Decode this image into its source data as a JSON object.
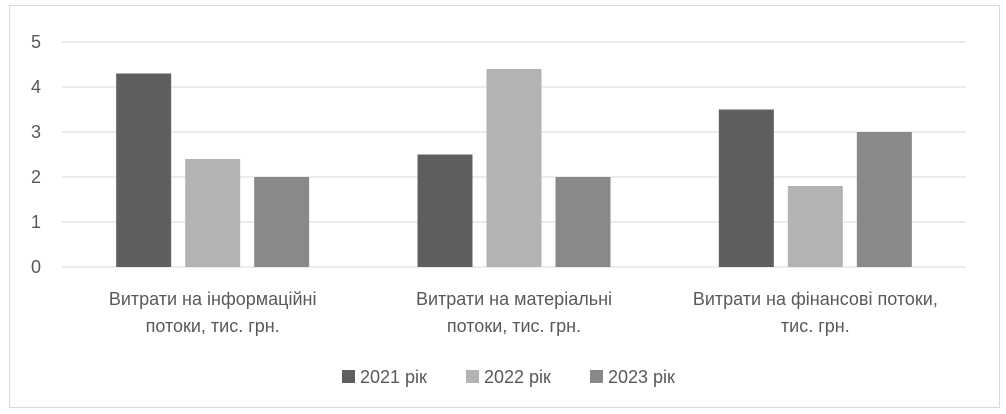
{
  "chart_data": {
    "type": "bar",
    "title": "",
    "xlabel": "",
    "ylabel": "",
    "categories": [
      [
        "Витрати на інформаційні",
        "потоки, тис. грн."
      ],
      [
        "Витрати на матеріальні",
        "потоки, тис. грн."
      ],
      [
        "Витрати на фінансові потоки,",
        "тис. грн."
      ]
    ],
    "series": [
      {
        "name": "2021 рік",
        "values": [
          4.3,
          2.5,
          3.5
        ],
        "color": "#5f5f5f"
      },
      {
        "name": "2022 рік",
        "values": [
          2.4,
          4.4,
          1.8
        ],
        "color": "#b3b3b3"
      },
      {
        "name": "2023 рік",
        "values": [
          2.0,
          2.0,
          3.0
        ],
        "color": "#898989"
      }
    ],
    "ylim": [
      0,
      5
    ],
    "yticks": [
      0,
      1,
      2,
      3,
      4,
      5
    ],
    "grid": true,
    "legend": "bottom",
    "gridColor": "#d9d9d9"
  }
}
